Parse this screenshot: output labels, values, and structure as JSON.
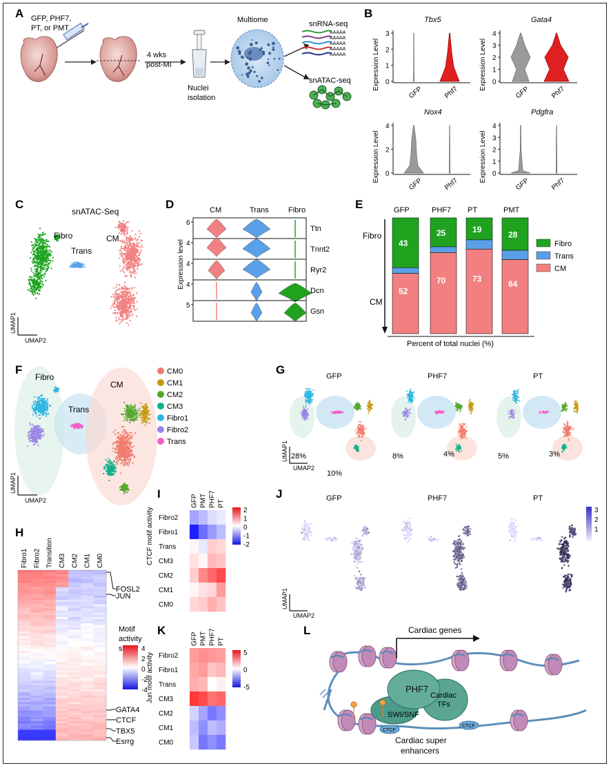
{
  "panelA": {
    "letter": "A",
    "injection": [
      "GFP, PHF7,",
      "PT, or PMT"
    ],
    "timepoint": [
      "4 wks",
      "post-MI"
    ],
    "isolation": [
      "Nuclei",
      "isolation"
    ],
    "multiome": "Multiome",
    "rna": "snRNA-seq",
    "atac": "snATAC-seq",
    "polyA": "AAAAA"
  },
  "panelB": {
    "letter": "B",
    "ylabel": "Expression Level",
    "groups": [
      "GFP",
      "Phf7"
    ],
    "genes": [
      {
        "name": "Tbx5",
        "ymax": 3,
        "ticks": [
          "0",
          "1",
          "2",
          "3"
        ]
      },
      {
        "name": "Gata4",
        "ymax": 4,
        "ticks": [
          "0",
          "1",
          "2",
          "3",
          "4"
        ]
      },
      {
        "name": "Nox4",
        "ymax": 4,
        "ticks": [
          "0",
          "2",
          "4"
        ]
      },
      {
        "name": "Pdgfra",
        "ymax": 4,
        "ticks": [
          "0",
          "1",
          "2",
          "3",
          "4"
        ]
      }
    ]
  },
  "panelC": {
    "letter": "C",
    "title": "snATAC-Seq",
    "labels": {
      "fibro": "Fibro",
      "trans": "Trans",
      "cm": "CM"
    },
    "ax1": "UMAP1",
    "ax2": "UMAP2"
  },
  "panelD": {
    "letter": "D",
    "cols": [
      "CM",
      "Trans",
      "Fibro"
    ],
    "genes": [
      "Ttn",
      "Tnnt2",
      "Ryr2",
      "Dcn",
      "Gsn"
    ],
    "ylabel": "Expression level",
    "ticks": [
      "6",
      "4",
      "4",
      "4",
      "5"
    ]
  },
  "panelE": {
    "letter": "E",
    "groups": [
      "GFP",
      "PHF7",
      "PT",
      "PMT"
    ],
    "fibro": [
      43,
      25,
      19,
      28
    ],
    "trans": [
      5,
      5,
      8,
      8
    ],
    "cm": [
      52,
      70,
      73,
      64
    ],
    "xlabel": "Percent of total nuclei (%)",
    "axFibro": "Fibro",
    "axCM": "CM",
    "legend": [
      "Fibro",
      "Trans",
      "CM"
    ]
  },
  "panelF": {
    "letter": "F",
    "labels": {
      "fibro": "Fibro",
      "trans": "Trans",
      "cm": "CM"
    },
    "legend": [
      "CM0",
      "CM1",
      "CM2",
      "CM3",
      "Fibro1",
      "Fibro2",
      "Trans"
    ],
    "ax1": "UMAP1",
    "ax2": "UMAP2"
  },
  "panelG": {
    "letter": "G",
    "titles": [
      "GFP",
      "PHF7",
      "PT"
    ],
    "fibroPct": [
      "28%",
      "8%",
      "5%"
    ],
    "cmPct": [
      "10%",
      "4%",
      "3%"
    ],
    "ax1": "UMAP1",
    "ax2": "UMAP2"
  },
  "panelH": {
    "letter": "H",
    "cols": [
      "Fibro1",
      "Fibro2",
      "Transition",
      "CM3",
      "CM2",
      "CM1",
      "CM0"
    ],
    "motifs": [
      "FOSL2",
      "JUN",
      "GATA4",
      "CTCF",
      "TBX5",
      "Esrrg"
    ],
    "legendTitle": [
      "Motif",
      "activity",
      "score"
    ],
    "ticks": [
      "4",
      "2",
      "0",
      "-2",
      "-4"
    ]
  },
  "panelI": {
    "letter": "I",
    "cols": [
      "GFP",
      "PMT",
      "PHF7",
      "PT"
    ],
    "rows": [
      "Fibro2",
      "Fibro1",
      "Trans",
      "CM3",
      "CM2",
      "CM1",
      "CM0"
    ],
    "ylabel": "CTCF motif activity",
    "ticks": [
      "2",
      "1",
      "0",
      "-1",
      "-2"
    ],
    "values": [
      [
        -0.8,
        -0.6,
        -0.3,
        -0.2
      ],
      [
        -2,
        -1.3,
        -0.9,
        -0.6
      ],
      [
        0.1,
        -0.2,
        0.5,
        0.4
      ],
      [
        0.3,
        0.1,
        0.7,
        0.6
      ],
      [
        0.5,
        1.2,
        1.5,
        1.8
      ],
      [
        0.1,
        0.3,
        0.4,
        1.0
      ],
      [
        0.4,
        0.5,
        0.8,
        0.6
      ]
    ]
  },
  "panelJ": {
    "letter": "J",
    "titles": [
      "GFP",
      "PHF7",
      "PT"
    ],
    "ticks": [
      "3",
      "2",
      "1"
    ],
    "ax1": "UMAP1",
    "ax2": "UMAP2"
  },
  "panelK": {
    "letter": "K",
    "cols": [
      "GFP",
      "PMT",
      "PHF7",
      "PT"
    ],
    "rows": [
      "Fibro2",
      "Fibro1",
      "Trans",
      "CM3",
      "CM2",
      "CM1",
      "CM0"
    ],
    "ylabel": "Jun motif activity",
    "ticks": [
      "5",
      "0",
      "-5"
    ],
    "values": [
      [
        2.5,
        2.8,
        2.6,
        2.4
      ],
      [
        2.2,
        2.5,
        1.5,
        1.8
      ],
      [
        2,
        1.8,
        0,
        0.4
      ],
      [
        5,
        4.5,
        3.5,
        3.8
      ],
      [
        -1,
        -2,
        -3,
        -2.5
      ],
      [
        -1.5,
        -2.5,
        -1.5,
        -1.8
      ],
      [
        -1.2,
        -3,
        -2.5,
        -3
      ]
    ]
  },
  "panelL": {
    "letter": "L",
    "cardiacGenes": "Cardiac genes",
    "phf7": "PHF7",
    "tfs": [
      "Cardiac",
      "TFs"
    ],
    "swi": "SWI/SNF",
    "ctcf": "CTCF",
    "enh": [
      "Cardiac super",
      "enhancers"
    ]
  },
  "colors": {
    "fibro": "#1fa31f",
    "trans": "#5aa0e8",
    "cm": "#f28080",
    "red": "#e02020",
    "green": "#22a52a",
    "gray": "#9a9a9a",
    "CM0": "#f07b6b",
    "CM1": "#c89a10",
    "CM2": "#52a829",
    "CM3": "#12b08a",
    "Fibro1": "#2fb6e3",
    "Fibro2": "#9a84e8",
    "Trans": "#f55ec8"
  }
}
